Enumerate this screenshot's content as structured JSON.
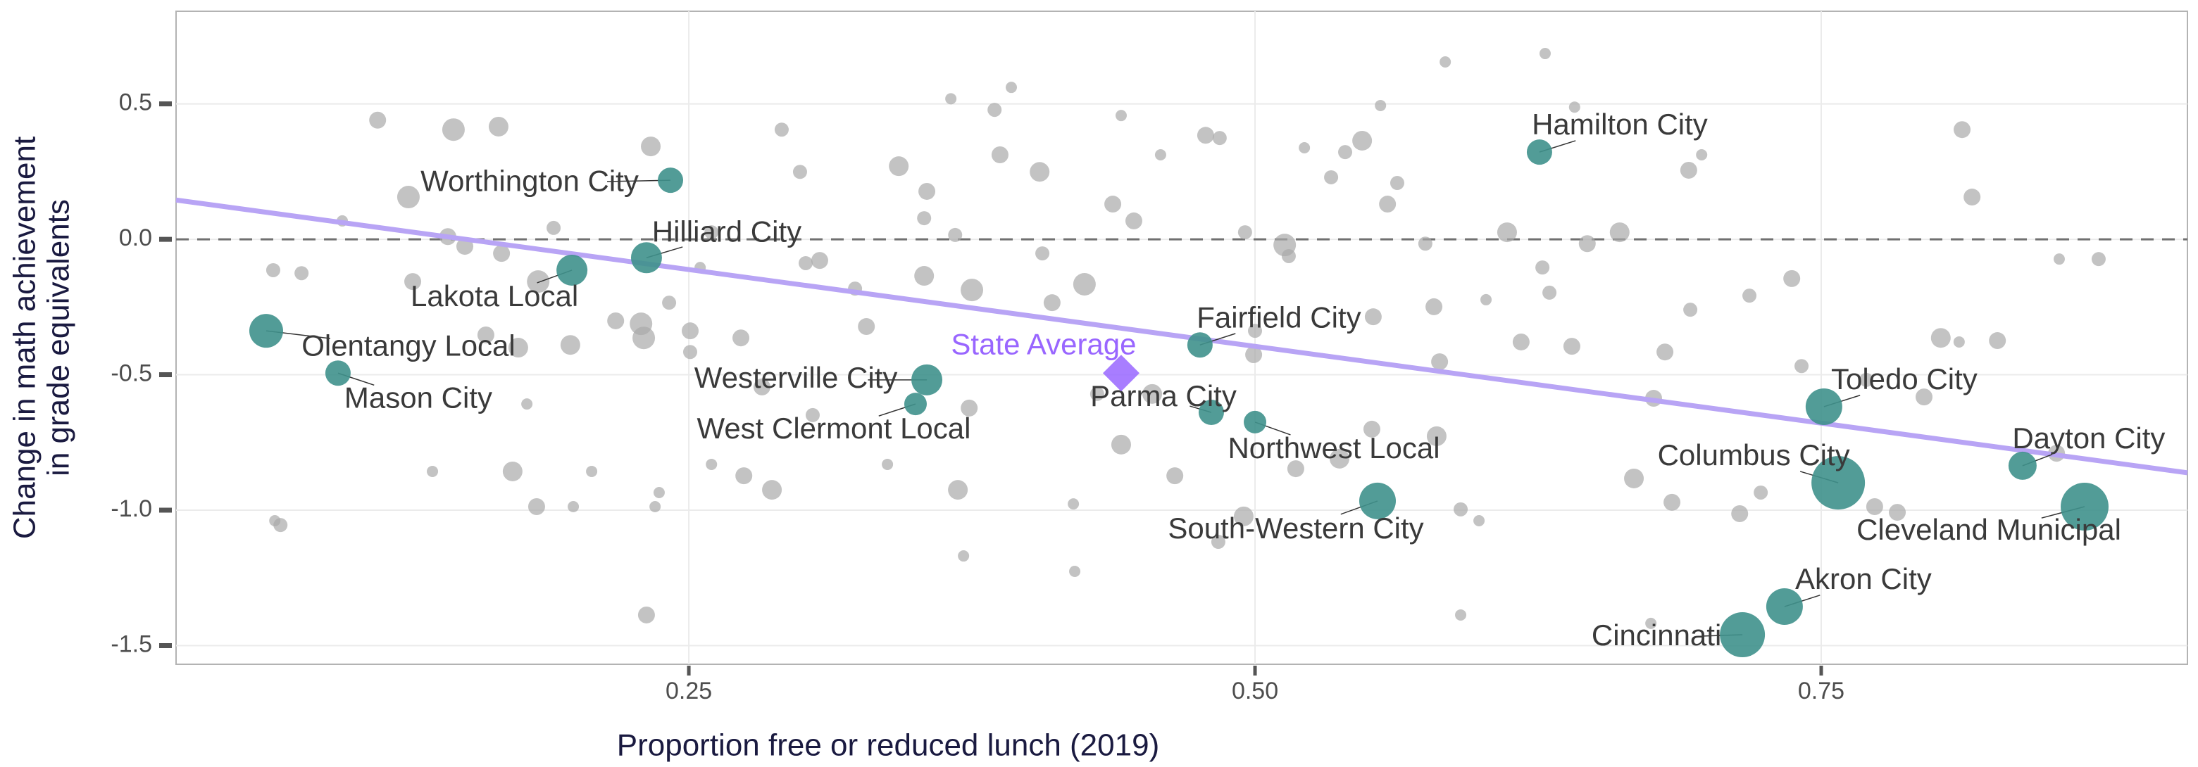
{
  "chart_data": {
    "type": "scatter",
    "x_label": "Proportion free or reduced lunch (2019)",
    "y_label": [
      "Change in math achievement",
      "in grade equivalents"
    ],
    "xlim": [
      0.0236,
      0.9117
    ],
    "ylim": [
      -1.569,
      0.842
    ],
    "xticks": [
      0.25,
      {
        "value": 0.5,
        "label": "0.50"
      },
      0.75
    ],
    "yticks": [
      0.5,
      {
        "value": 0,
        "label": "0.0"
      },
      -0.5,
      {
        "value": -1,
        "label": "-1.0"
      },
      -1.5
    ],
    "grid": true,
    "reference_line": 0,
    "points": {
      "color": "#a9a9a9",
      "x": [
        0.1126,
        0.1461,
        0.166,
        0.1262,
        0.1436,
        0.1281,
        0.1511,
        0.1673,
        0.1604,
        0.1747,
        0.1722,
        0.1828,
        0.1977,
        0.1835,
        0.1903,
        0.097,
        0.0665,
        0.079,
        0.0672,
        0.0697,
        0.1368,
        0.1785,
        0.199,
        0.2071,
        0.2177,
        0.2289,
        0.2301,
        0.2332,
        0.2313,
        0.2351,
        0.2369,
        0.2413,
        0.2506,
        0.2506,
        0.255,
        0.26,
        0.26,
        0.273,
        0.2743,
        0.2823,
        0.291,
        0.2991,
        0.3016,
        0.3078,
        0.2867,
        0.3047,
        0.3234,
        0.3284,
        0.3377,
        0.3427,
        0.3539,
        0.3539,
        0.3551,
        0.3657,
        0.3676,
        0.375,
        0.3688,
        0.3713,
        0.3738,
        0.385,
        0.3874,
        0.3924,
        0.4049,
        0.4061,
        0.4104,
        0.4198,
        0.4204,
        0.4247,
        0.4303,
        0.4372,
        0.4409,
        0.4465,
        0.4409,
        0.4546,
        0.4583,
        0.4646,
        0.4782,
        0.4844,
        0.4956,
        0.4994,
        0.5,
        0.5149,
        0.5131,
        0.518,
        0.5218,
        0.5336,
        0.5398,
        0.5473,
        0.5585,
        0.5554,
        0.5522,
        0.5516,
        0.5628,
        0.5752,
        0.579,
        0.5815,
        0.5802,
        0.584,
        0.5908,
        0.5908,
        0.5989,
        0.602,
        0.6113,
        0.6175,
        0.6269,
        0.6281,
        0.63,
        0.6399,
        0.6411,
        0.6467,
        0.661,
        0.6673,
        0.676,
        0.681,
        0.6841,
        0.6915,
        0.6922,
        0.6972,
        0.714,
        0.7183,
        0.7233,
        0.737,
        0.7413,
        0.7699,
        0.7736,
        0.7836,
        0.7954,
        0.8028,
        0.8109,
        0.8122,
        0.8166,
        0.8278,
        0.8539,
        0.8551,
        0.8725,
        0.6748,
        0.495,
        0.4838,
        0.5373
      ],
      "y": [
        0.44,
        0.405,
        0.416,
        0.156,
        0.01,
        -0.156,
        -0.026,
        -0.052,
        -0.353,
        -0.4,
        -0.857,
        -0.987,
        -0.39,
        -0.156,
        0.042,
        0.068,
        -0.114,
        -0.125,
        -1.039,
        -1.055,
        -0.857,
        -0.608,
        -0.987,
        -0.857,
        -0.301,
        -0.312,
        -0.364,
        0.343,
        -1.387,
        -0.987,
        -0.935,
        -0.234,
        -0.338,
        -0.416,
        -0.104,
        0.026,
        -0.831,
        -0.364,
        -0.873,
        -0.545,
        0.405,
        0.249,
        -0.088,
        -0.078,
        -0.925,
        -0.649,
        -0.182,
        -0.322,
        -0.831,
        0.27,
        0.078,
        -0.135,
        0.177,
        0.519,
        0.016,
        -0.187,
        -0.925,
        -1.169,
        -0.623,
        0.478,
        0.312,
        0.561,
        0.249,
        -0.052,
        -0.234,
        -0.977,
        -1.226,
        -0.166,
        -0.571,
        0.13,
        0.457,
        0.068,
        -0.758,
        -0.571,
        0.312,
        -0.873,
        0.384,
        0.374,
        0.026,
        -0.426,
        -0.338,
        -0.062,
        -0.021,
        -0.847,
        0.338,
        0.229,
        0.322,
        0.364,
        0.13,
        0.494,
        -0.286,
        -0.701,
        0.208,
        -0.016,
        -0.249,
        -0.452,
        -0.727,
        0.655,
        -0.997,
        -1.387,
        -1.039,
        -0.223,
        0.026,
        -0.379,
        -0.104,
        0.686,
        -0.197,
        -0.395,
        0.488,
        -0.016,
        0.026,
        -0.883,
        -0.587,
        -0.416,
        -0.971,
        0.255,
        -0.26,
        0.312,
        -1.013,
        -0.208,
        -0.935,
        -0.145,
        -0.468,
        -0.519,
        -0.987,
        -1.008,
        -0.582,
        -0.364,
        -0.379,
        0.405,
        0.156,
        -0.374,
        -0.79,
        -0.073,
        -0.073,
        -1.418,
        -1.023,
        -1.117,
        -0.81
      ],
      "sizes": [
        6,
        8,
        7,
        8,
        6,
        6,
        6,
        6,
        6,
        7,
        7,
        6,
        7,
        8,
        5,
        4,
        5,
        5,
        4,
        5,
        4,
        4,
        4,
        4,
        6,
        8,
        8,
        7,
        6,
        4,
        4,
        5,
        6,
        5,
        4,
        5,
        4,
        6,
        6,
        6,
        5,
        5,
        5,
        6,
        7,
        5,
        5,
        6,
        4,
        7,
        5,
        7,
        6,
        4,
        5,
        8,
        7,
        4,
        6,
        5,
        6,
        4,
        7,
        5,
        6,
        4,
        4,
        8,
        5,
        6,
        4,
        6,
        7,
        7,
        4,
        6,
        6,
        5,
        5,
        6,
        5,
        5,
        8,
        6,
        4,
        5,
        5,
        7,
        6,
        4,
        6,
        6,
        5,
        5,
        6,
        6,
        7,
        4,
        5,
        4,
        4,
        4,
        7,
        6,
        5,
        4,
        5,
        6,
        4,
        6,
        7,
        7,
        6,
        6,
        6,
        6,
        5,
        4,
        6,
        5,
        5,
        6,
        5,
        5,
        6,
        6,
        6,
        7,
        4,
        6,
        6,
        6,
        6,
        4,
        5,
        4,
        7,
        5,
        7
      ]
    },
    "highlighted": {
      "color": "#3f918c",
      "labels": [
        "Worthington City",
        "Hilliard City",
        "Lakota Local",
        "Olentangy Local",
        "Mason City",
        "Westerville City",
        "West Clermont Local",
        "Fairfield City",
        "Parma City",
        "Northwest Local",
        "South-Western City",
        "Hamilton City",
        "Toledo City",
        "Columbus City",
        "Dayton City",
        "Cleveland Municipal",
        "Akron City",
        "Cincinnati"
      ],
      "x": [
        0.2419,
        0.2313,
        0.1984,
        0.0634,
        0.0951,
        0.3551,
        0.3501,
        0.4757,
        0.4807,
        0.5,
        0.5541,
        0.6256,
        0.7512,
        0.7575,
        0.8389,
        0.8663,
        0.7338,
        0.7152
      ],
      "y": [
        0.218,
        -0.068,
        -0.114,
        -0.338,
        -0.494,
        -0.519,
        -0.608,
        -0.39,
        -0.639,
        -0.675,
        -0.966,
        0.322,
        -0.618,
        -0.899,
        -0.836,
        -0.987,
        -1.356,
        -1.46
      ],
      "sizes": [
        9,
        11,
        11,
        12,
        9,
        11,
        8,
        9,
        9,
        8,
        13,
        9,
        13,
        19,
        10,
        17,
        13,
        16
      ]
    },
    "state_average": {
      "label": "State Average",
      "x": 0.4409,
      "y": -0.494,
      "color": "#9966ff"
    },
    "trend": {
      "color": "#b8a4f5",
      "x": [
        0.0236,
        0.9117
      ],
      "y": [
        0.145,
        -0.862
      ]
    }
  }
}
